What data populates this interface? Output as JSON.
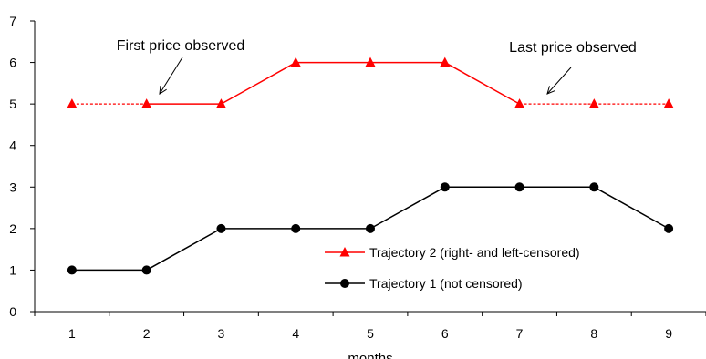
{
  "chart_data": {
    "type": "line",
    "xlabel": "months",
    "ylabel": "",
    "x": [
      1,
      2,
      3,
      4,
      5,
      6,
      7,
      8,
      9
    ],
    "xlim": [
      0.5,
      9.5
    ],
    "ylim": [
      0,
      7
    ],
    "yticks": [
      0,
      1,
      2,
      3,
      4,
      5,
      6,
      7
    ],
    "grid": false,
    "legend_position": "lower-right",
    "series": [
      {
        "name": "Trajectory 2 (right- and left-censored)",
        "values": [
          5,
          5,
          5,
          6,
          6,
          6,
          5,
          5,
          5
        ],
        "color": "#ff0000",
        "marker": "triangle",
        "observed_range": [
          2,
          7
        ],
        "censored_style": "dashed"
      },
      {
        "name": "Trajectory 1 (not censored)",
        "values": [
          1,
          1,
          2,
          2,
          2,
          3,
          3,
          3,
          2
        ],
        "color": "#000000",
        "marker": "circle"
      }
    ],
    "annotations": [
      {
        "text": "First price observed",
        "points_to": [
          2,
          5
        ]
      },
      {
        "text": "Last price observed",
        "points_to": [
          7,
          5
        ]
      }
    ]
  }
}
